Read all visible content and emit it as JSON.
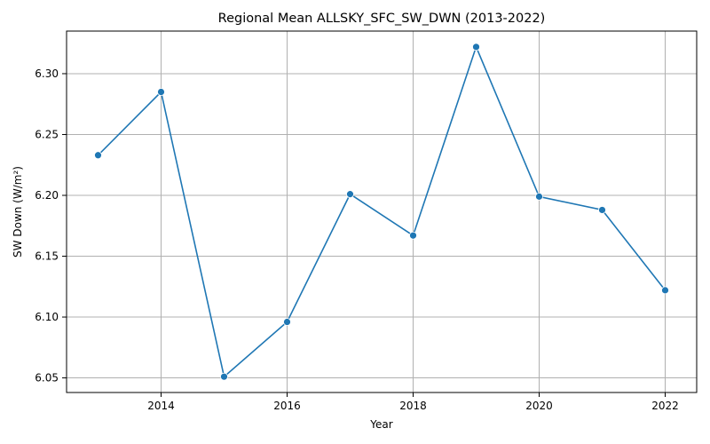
{
  "chart_data": {
    "type": "line",
    "title": "Regional Mean ALLSKY_SFC_SW_DWN (2013-2022)",
    "xlabel": "Year",
    "ylabel": "SW Down (W/m²)",
    "x": [
      2013,
      2014,
      2015,
      2016,
      2017,
      2018,
      2019,
      2020,
      2021,
      2022
    ],
    "series": [
      {
        "values": [
          6.233,
          6.285,
          6.051,
          6.096,
          6.201,
          6.167,
          6.322,
          6.199,
          6.188,
          6.122
        ]
      }
    ],
    "xlim": [
      2012.5,
      2022.5
    ],
    "ylim": [
      6.038,
      6.335
    ],
    "xticks": [
      2014,
      2016,
      2018,
      2020,
      2022
    ],
    "yticks": [
      "6.05",
      "6.10",
      "6.15",
      "6.20",
      "6.25",
      "6.30"
    ],
    "grid": true,
    "color": "#1f77b4",
    "marker": "circle"
  }
}
